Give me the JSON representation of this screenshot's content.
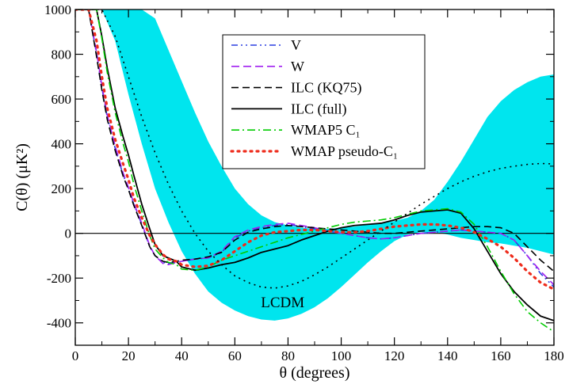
{
  "chart_data": {
    "type": "line",
    "xlabel": "θ (degrees)",
    "ylabel": "C(θ) (μK²)",
    "xlim": [
      0,
      180
    ],
    "ylim": [
      -500,
      1000
    ],
    "xticks": [
      0,
      20,
      40,
      60,
      80,
      100,
      120,
      140,
      160,
      180
    ],
    "yticks": [
      -400,
      -200,
      0,
      200,
      400,
      600,
      800,
      1000
    ],
    "grid": false,
    "legend_position": "top-center",
    "zero_line": true,
    "band": {
      "label": "LCDM",
      "color": "#00e5ee",
      "x": [
        0,
        5,
        10,
        15,
        20,
        25,
        30,
        35,
        40,
        45,
        50,
        55,
        60,
        65,
        70,
        75,
        80,
        85,
        90,
        95,
        100,
        105,
        110,
        115,
        120,
        125,
        130,
        135,
        140,
        145,
        150,
        155,
        160,
        165,
        170,
        175,
        180
      ],
      "upper": [
        1000,
        1000,
        1000,
        1000,
        1000,
        1000,
        960,
        820,
        680,
        540,
        410,
        300,
        200,
        130,
        80,
        50,
        35,
        25,
        20,
        20,
        25,
        30,
        38,
        45,
        55,
        70,
        100,
        150,
        230,
        320,
        420,
        520,
        590,
        640,
        675,
        700,
        710
      ],
      "lower": [
        1000,
        1000,
        1000,
        860,
        620,
        400,
        200,
        50,
        -80,
        -180,
        -260,
        -310,
        -345,
        -370,
        -385,
        -390,
        -380,
        -360,
        -330,
        -290,
        -240,
        -185,
        -130,
        -80,
        -35,
        -5,
        5,
        5,
        -5,
        -20,
        -30,
        -40,
        -45,
        -55,
        -65,
        -80,
        -95
      ]
    },
    "series": [
      {
        "name": "V",
        "color": "#2b3fe0",
        "dash": "8,4,2,4,2,4",
        "width": 1.6,
        "x": [
          0,
          5,
          8,
          10,
          12,
          15,
          18,
          20,
          22,
          25,
          28,
          30,
          33,
          35,
          38,
          40,
          45,
          50,
          55,
          60,
          65,
          70,
          75,
          80,
          85,
          90,
          95,
          100,
          105,
          110,
          115,
          120,
          125,
          130,
          135,
          140,
          145,
          150,
          155,
          160,
          165,
          170,
          175,
          180
        ],
        "y": [
          1000,
          1000,
          800,
          650,
          520,
          380,
          260,
          200,
          130,
          40,
          -60,
          -100,
          -130,
          -135,
          -125,
          -125,
          -115,
          -110,
          -85,
          -20,
          10,
          25,
          35,
          40,
          30,
          20,
          10,
          0,
          -10,
          -20,
          -25,
          -20,
          -10,
          0,
          5,
          10,
          15,
          10,
          5,
          0,
          -30,
          -100,
          -180,
          -240
        ]
      },
      {
        "name": "W",
        "color": "#a020f0",
        "dash": "10,5",
        "width": 1.6,
        "x": [
          0,
          5,
          8,
          10,
          12,
          15,
          18,
          20,
          22,
          25,
          28,
          30,
          33,
          35,
          38,
          40,
          45,
          50,
          55,
          60,
          65,
          70,
          75,
          80,
          85,
          90,
          95,
          100,
          105,
          110,
          115,
          120,
          125,
          130,
          135,
          140,
          145,
          150,
          155,
          160,
          165,
          170,
          175,
          180
        ],
        "y": [
          1000,
          1000,
          810,
          660,
          530,
          390,
          270,
          205,
          135,
          45,
          -55,
          -100,
          -135,
          -140,
          -130,
          -125,
          -115,
          -110,
          -80,
          -15,
          15,
          30,
          40,
          45,
          35,
          25,
          10,
          0,
          -10,
          -20,
          -25,
          -20,
          -10,
          0,
          5,
          10,
          15,
          10,
          5,
          0,
          -30,
          -100,
          -170,
          -230
        ]
      },
      {
        "name": "ILC (KQ75)",
        "color": "#000000",
        "dash": "9,5",
        "width": 1.6,
        "x": [
          0,
          5,
          8,
          10,
          12,
          15,
          18,
          20,
          22,
          25,
          28,
          30,
          33,
          35,
          38,
          40,
          45,
          50,
          55,
          60,
          65,
          70,
          75,
          80,
          85,
          90,
          95,
          100,
          105,
          110,
          115,
          120,
          125,
          130,
          135,
          140,
          145,
          150,
          155,
          160,
          165,
          170,
          175,
          180
        ],
        "y": [
          1000,
          1000,
          790,
          640,
          510,
          370,
          255,
          195,
          125,
          35,
          -60,
          -100,
          -125,
          -130,
          -125,
          -120,
          -115,
          -105,
          -85,
          -30,
          5,
          20,
          30,
          35,
          30,
          25,
          20,
          15,
          10,
          5,
          0,
          0,
          5,
          10,
          15,
          20,
          25,
          30,
          30,
          25,
          0,
          -60,
          -120,
          -170
        ]
      },
      {
        "name": "ILC (full)",
        "color": "#000000",
        "dash": "",
        "width": 1.8,
        "x": [
          0,
          5,
          8,
          10,
          12,
          15,
          18,
          20,
          22,
          25,
          28,
          30,
          33,
          35,
          38,
          40,
          45,
          50,
          55,
          60,
          65,
          70,
          75,
          80,
          85,
          90,
          95,
          100,
          105,
          110,
          115,
          120,
          125,
          130,
          135,
          140,
          145,
          150,
          155,
          160,
          165,
          170,
          175,
          180
        ],
        "y": [
          1000,
          1000,
          1000,
          880,
          740,
          560,
          430,
          350,
          260,
          130,
          20,
          -50,
          -100,
          -110,
          -125,
          -150,
          -165,
          -155,
          -140,
          -130,
          -110,
          -85,
          -70,
          -55,
          -30,
          -10,
          10,
          25,
          35,
          40,
          45,
          60,
          80,
          95,
          100,
          105,
          90,
          20,
          -80,
          -180,
          -260,
          -320,
          -370,
          -390
        ]
      },
      {
        "name": "WMAP5 C₁",
        "color": "#00cc00",
        "dash": "10,4,2,4",
        "width": 1.6,
        "x": [
          0,
          5,
          8,
          10,
          12,
          15,
          18,
          20,
          22,
          25,
          28,
          30,
          33,
          35,
          38,
          40,
          45,
          50,
          55,
          60,
          65,
          70,
          75,
          80,
          85,
          90,
          95,
          100,
          105,
          110,
          115,
          120,
          125,
          130,
          135,
          140,
          145,
          150,
          155,
          160,
          165,
          170,
          175,
          180
        ],
        "y": [
          1000,
          1000,
          1000,
          870,
          720,
          540,
          400,
          320,
          220,
          100,
          -10,
          -70,
          -110,
          -130,
          -140,
          -160,
          -165,
          -150,
          -120,
          -100,
          -80,
          -60,
          -40,
          -20,
          -5,
          10,
          25,
          40,
          50,
          55,
          60,
          70,
          85,
          100,
          105,
          110,
          95,
          40,
          -60,
          -170,
          -270,
          -350,
          -400,
          -440
        ]
      },
      {
        "name": "WMAP pseudo-C₁",
        "color": "#ee2b1b",
        "dash": "2,6",
        "width": 3.2,
        "x": [
          0,
          5,
          8,
          10,
          12,
          15,
          18,
          20,
          22,
          25,
          28,
          30,
          33,
          35,
          38,
          40,
          45,
          50,
          55,
          60,
          65,
          70,
          75,
          80,
          85,
          90,
          95,
          100,
          105,
          110,
          115,
          120,
          125,
          130,
          135,
          140,
          145,
          150,
          155,
          160,
          165,
          170,
          175,
          180
        ],
        "y": [
          1000,
          1000,
          860,
          700,
          560,
          420,
          310,
          240,
          160,
          70,
          -10,
          -50,
          -95,
          -115,
          -125,
          -140,
          -150,
          -145,
          -120,
          -80,
          -40,
          -10,
          5,
          10,
          15,
          15,
          10,
          5,
          5,
          10,
          20,
          30,
          35,
          40,
          40,
          35,
          25,
          5,
          -25,
          -60,
          -110,
          -170,
          -220,
          -250
        ]
      },
      {
        "name": "",
        "color": "#000000",
        "dash": "2,5",
        "width": 1.6,
        "x": [
          0,
          5,
          10,
          15,
          20,
          25,
          30,
          35,
          40,
          45,
          50,
          55,
          60,
          65,
          70,
          75,
          80,
          85,
          90,
          95,
          100,
          105,
          110,
          115,
          120,
          125,
          130,
          135,
          140,
          145,
          150,
          155,
          160,
          165,
          170,
          175,
          180
        ],
        "y": [
          1000,
          1000,
          1000,
          880,
          700,
          520,
          360,
          220,
          100,
          0,
          -80,
          -140,
          -190,
          -220,
          -240,
          -245,
          -235,
          -215,
          -185,
          -150,
          -110,
          -70,
          -30,
          10,
          50,
          90,
          130,
          165,
          200,
          230,
          255,
          275,
          290,
          300,
          308,
          312,
          310
        ]
      }
    ]
  }
}
